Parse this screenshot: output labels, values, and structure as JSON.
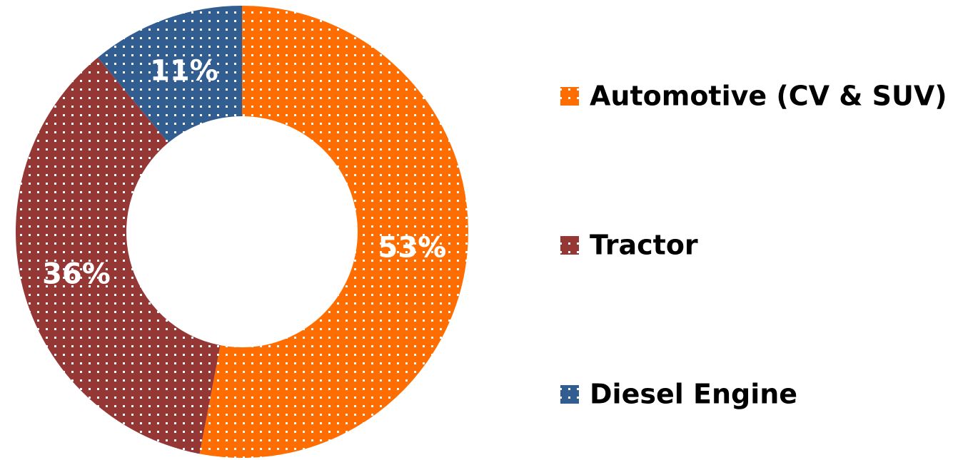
{
  "chart_data": {
    "type": "donut",
    "categories": [
      "Automotive (CV & SUV)",
      "Tractor",
      "Diesel Engine"
    ],
    "values": [
      53,
      36,
      11
    ],
    "value_labels": [
      "53%",
      "36%",
      "11%"
    ],
    "colors": [
      "#ff6d00",
      "#953735",
      "#325d91"
    ],
    "legend": "right"
  }
}
